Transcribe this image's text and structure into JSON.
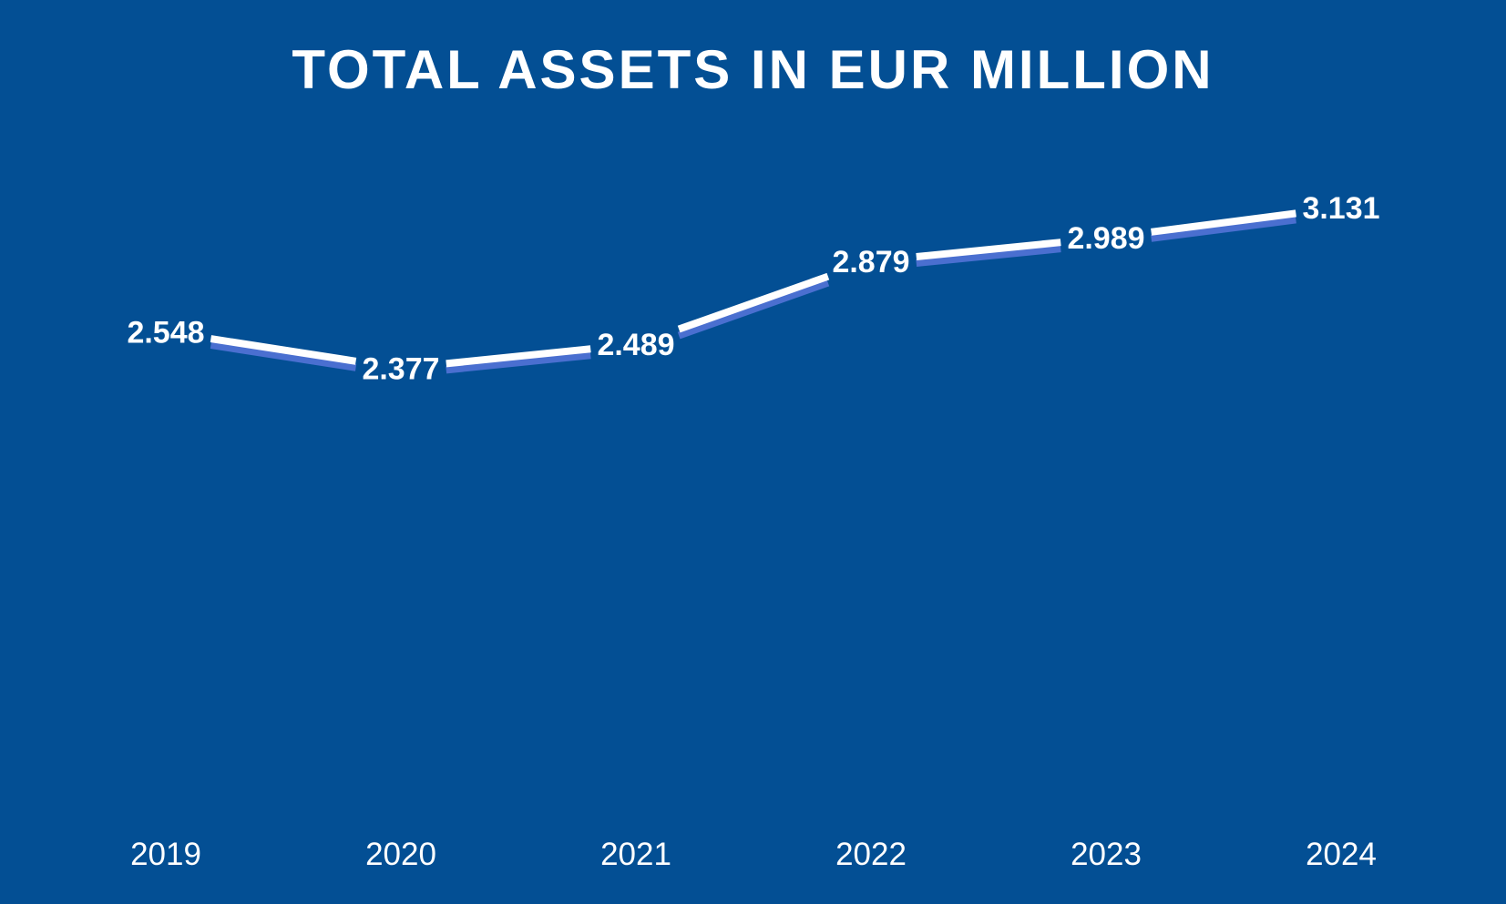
{
  "chart_data": {
    "type": "line",
    "title": "TOTAL ASSETS IN EUR MILLION",
    "categories": [
      "2019",
      "2020",
      "2021",
      "2022",
      "2023",
      "2024"
    ],
    "values": [
      2548,
      2377,
      2489,
      2879,
      2989,
      3131
    ],
    "value_labels": [
      "2.548",
      "2.377",
      "2.489",
      "2.879",
      "2.989",
      "3.131"
    ],
    "xlabel": "",
    "ylabel": "",
    "grid": false,
    "legend": "none",
    "colors": {
      "background": "#034f94",
      "line": "#ffffff",
      "line_shadow": "#4a6fd0",
      "text": "#ffffff"
    }
  }
}
